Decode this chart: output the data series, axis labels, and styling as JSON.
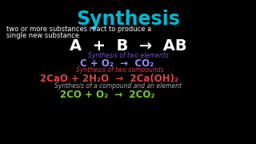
{
  "background_color": "#000000",
  "title": "Synthesis",
  "title_color": "#00b8d0",
  "title_fontsize": 17,
  "subtitle_line1": "two or more substances react to produce a",
  "subtitle_line2": "single new substance",
  "subtitle_color": "#ffffff",
  "subtitle_fontsize": 6.0,
  "general_eq": "A  +  B  →  AB",
  "general_eq_color": "#ffffff",
  "general_eq_fontsize": 14,
  "label1": "Synthesis of two elements",
  "label1_color": "#7755bb",
  "label1_fontsize": 5.5,
  "eq1": "C + O₂  →  CO₂",
  "eq1_color": "#9988ff",
  "eq1_fontsize": 8.5,
  "label2": "Synthesis of two compounds",
  "label2_color": "#cc4444",
  "label2_fontsize": 5.5,
  "eq2": "2CaO + 2H₂O  →  2Ca(OH)₂",
  "eq2_color": "#dd4444",
  "eq2_fontsize": 8.5,
  "label3": "Synthesis of a compound and an element",
  "label3_color": "#aaaaaa",
  "label3_fontsize": 5.5,
  "eq3": "2CO + O₂  →  2CO₂",
  "eq3_color": "#77cc33",
  "eq3_fontsize": 8.5
}
